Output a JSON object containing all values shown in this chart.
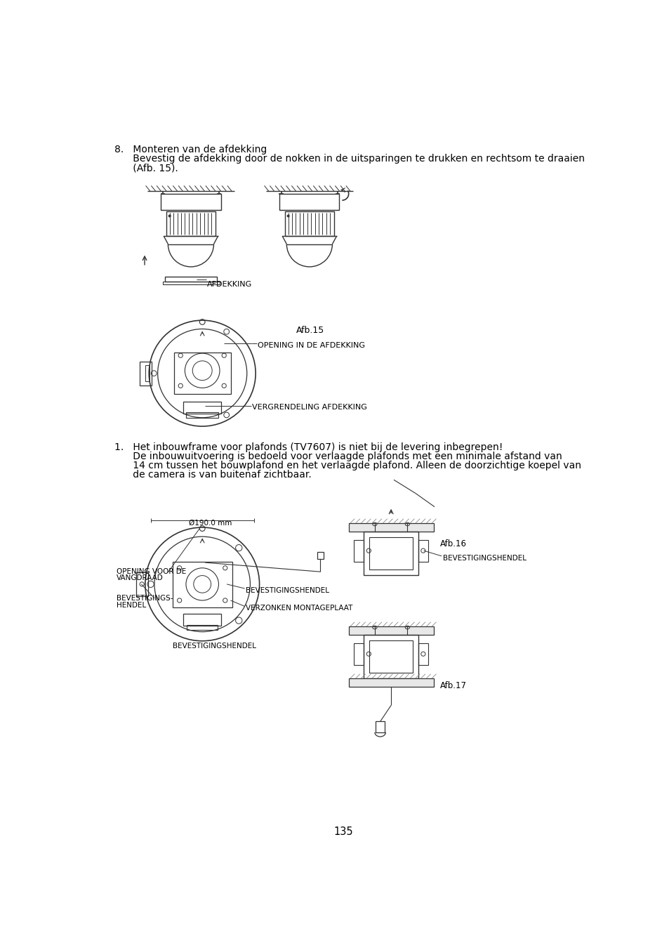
{
  "bg_color": "#ffffff",
  "line_color": "#333333",
  "page_number": "135",
  "s8_line1": "8.   Monteren van de afdekking",
  "s8_line2": "      Bevestig de afdekking door de nokken in de uitsparingen te drukken en rechtsom te draaien",
  "s8_line3": "      (Afb. 15).",
  "s1_line1": "1.   Het inbouwframe voor plafonds (TV7607) is niet bij de levering inbegrepen!",
  "s1_line2": "      De inbouwuitvoering is bedoeld voor verlaagde plafonds met een minimale afstand van",
  "s1_line3": "      14 cm tussen het bouwplafond en het verlaagde plafond. Alleen de doorzichtige koepel van",
  "s1_line4": "      de camera is van buitenaf zichtbaar.",
  "label_afdekking": "AFDEKKING",
  "label_afb15": "Afb.15",
  "label_opening_afdekking": "OPENING IN DE AFDEKKING",
  "label_vergrendeling": "VERGRENDELING AFDEKKING",
  "label_diameter": "Ø190.0 mm",
  "label_opening_vangdraad_1": "OPENING VOOR DE",
  "label_opening_vangdraad_2": "VANGDRAAD",
  "label_bevestigings_1": "BEVESTIGINGS-",
  "label_bevestigings_2": "HENDEL",
  "label_bevestigingshendel_mid": "BEVESTIGINGSHENDEL",
  "label_verzonken": "VERZONKEN MONTAGEPLAAT",
  "label_bevestigingshendel_bottom": "BEVESTIGINGSHENDEL",
  "label_bevestigingshendel_right": "BEVESTIGINGSHENDEL",
  "label_afb16": "Afb.16",
  "label_afb17": "Afb.17"
}
